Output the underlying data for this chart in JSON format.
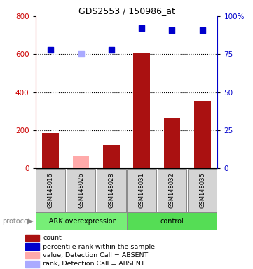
{
  "title": "GDS2553 / 150986_at",
  "samples": [
    "GSM148016",
    "GSM148026",
    "GSM148028",
    "GSM148031",
    "GSM148032",
    "GSM148035"
  ],
  "bar_values": [
    185,
    65,
    120,
    605,
    265,
    355
  ],
  "bar_colors": [
    "#aa1111",
    "#ffaaaa",
    "#aa1111",
    "#aa1111",
    "#aa1111",
    "#aa1111"
  ],
  "dot_values": [
    78,
    75,
    78,
    92,
    91,
    91
  ],
  "dot_colors": [
    "#0000cc",
    "#aaaaff",
    "#0000cc",
    "#0000cc",
    "#0000cc",
    "#0000cc"
  ],
  "yleft_max": 800,
  "yleft_ticks": [
    0,
    200,
    400,
    600,
    800
  ],
  "yright_ticks": [
    0,
    25,
    50,
    75,
    100
  ],
  "yright_labels": [
    "0",
    "25",
    "50",
    "75",
    "100%"
  ],
  "groups": [
    {
      "label": "LARK overexpression",
      "start": 0,
      "end": 3,
      "color": "#77ee77"
    },
    {
      "label": "control",
      "start": 3,
      "end": 6,
      "color": "#55dd55"
    }
  ],
  "protocol_label": "protocol",
  "left_axis_color": "#cc0000",
  "right_axis_color": "#0000cc",
  "legend_items": [
    {
      "color": "#aa1111",
      "label": "count"
    },
    {
      "color": "#0000cc",
      "label": "percentile rank within the sample"
    },
    {
      "color": "#ffaaaa",
      "label": "value, Detection Call = ABSENT"
    },
    {
      "color": "#aaaaff",
      "label": "rank, Detection Call = ABSENT"
    }
  ]
}
